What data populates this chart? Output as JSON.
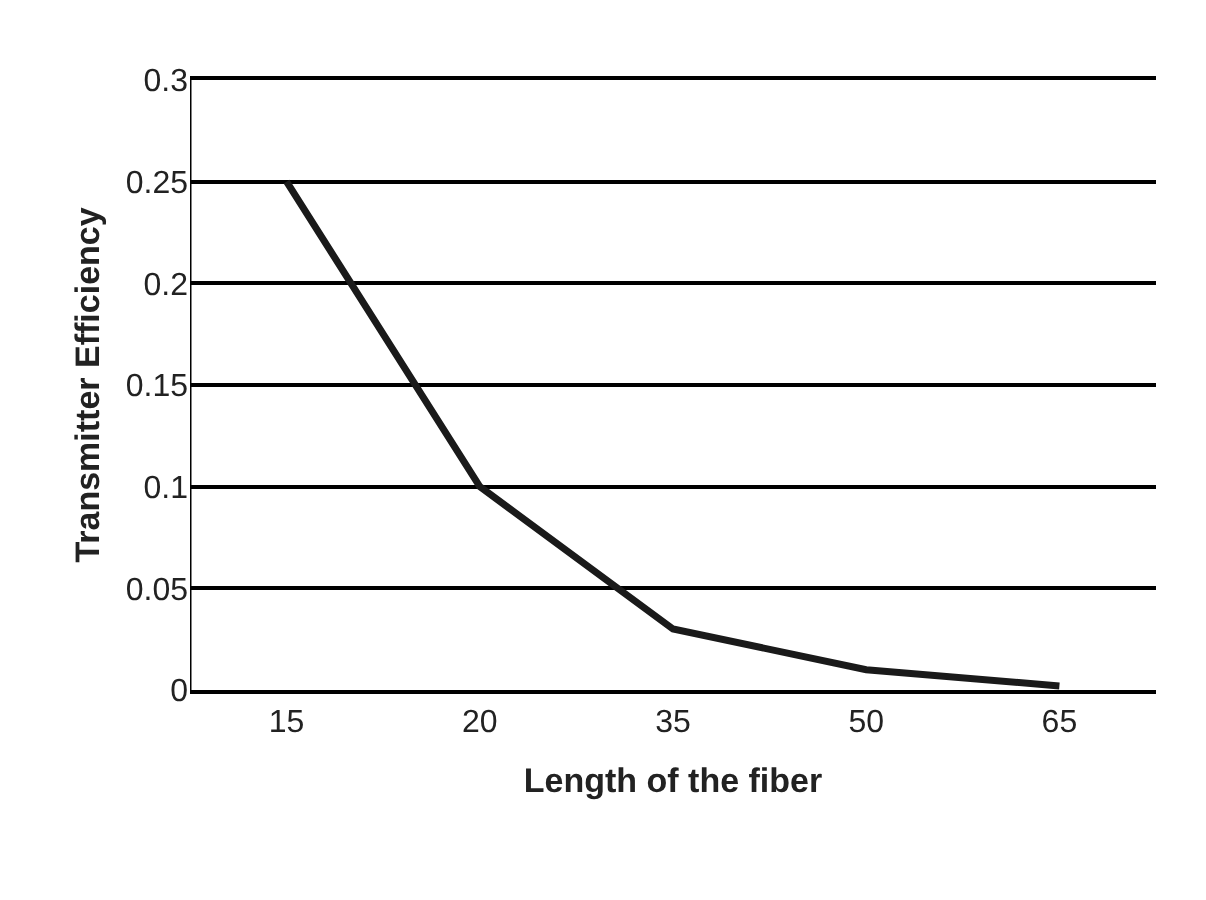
{
  "chart_data": {
    "type": "line",
    "xlabel": "Length of the fiber",
    "ylabel": "Transmitter Efficiency",
    "categories": [
      "15",
      "20",
      "35",
      "50",
      "65"
    ],
    "series": [
      {
        "color": "#1a1a1a",
        "values": [
          0.25,
          0.1,
          0.03,
          0.01,
          0.002
        ]
      }
    ],
    "ylim": [
      0,
      0.3
    ],
    "yticks": [
      0,
      0.05,
      0.1,
      0.15,
      0.2,
      0.25,
      0.3
    ],
    "grid": "y",
    "marker": "none",
    "line_style": "solid"
  }
}
